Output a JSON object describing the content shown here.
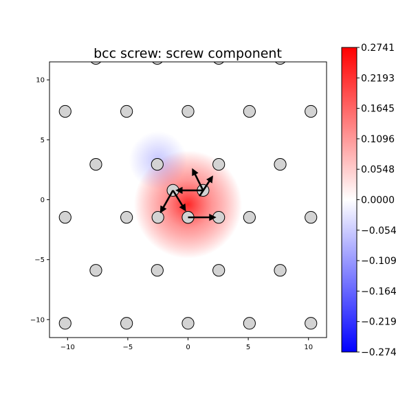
{
  "chart_data": {
    "type": "scatter",
    "title": "bcc screw: screw component",
    "xlabel": "",
    "ylabel": "",
    "xlim": [
      -11.5,
      11.5
    ],
    "ylim": [
      -11.5,
      11.5
    ],
    "x_ticks": [
      -10,
      -5,
      0,
      5,
      10
    ],
    "y_ticks": [
      10,
      5,
      0,
      -5,
      -10
    ],
    "grid": false,
    "lattice": {
      "description_values": "atom column positions in data units",
      "a1": [
        5.1,
        0
      ],
      "a2": [
        2.55,
        4.42
      ],
      "origin": [
        0,
        -1.47
      ]
    },
    "arrows": [
      {
        "from": [
          0,
          -1.47
        ],
        "to": [
          2.2,
          -1.47
        ]
      },
      {
        "from": [
          -1.25,
          0.78
        ],
        "to": [
          -2.25,
          -1.0
        ]
      },
      {
        "from": [
          -1.25,
          0.78
        ],
        "to": [
          -0.25,
          -0.85
        ]
      },
      {
        "from": [
          1.25,
          0.78
        ],
        "to": [
          -0.9,
          0.78
        ]
      },
      {
        "from": [
          0.95,
          0.3
        ],
        "to": [
          2.0,
          1.9
        ]
      },
      {
        "from": [
          1.25,
          0.78
        ],
        "to": [
          0.4,
          2.5
        ]
      }
    ],
    "field_blobs": [
      {
        "center": [
          0,
          -0.4
        ],
        "amplitude": 0.22,
        "sigma": 2.8
      },
      {
        "center": [
          -2.5,
          3.3
        ],
        "amplitude": -0.05,
        "sigma": 1.5
      }
    ],
    "colorbar": {
      "vmin": -0.2741,
      "vmax": 0.2741,
      "colors": [
        "#0000ff",
        "#ffffff",
        "#ff0000"
      ],
      "tick_labels": [
        "0.2741",
        "0.2193",
        "0.1645",
        "0.1096",
        "0.0548",
        "0.0000",
        "−0.0548",
        "−0.1096",
        "−0.1645",
        "−0.2193",
        "−0.2741"
      ]
    },
    "atom_color": "#d3d3d3"
  }
}
